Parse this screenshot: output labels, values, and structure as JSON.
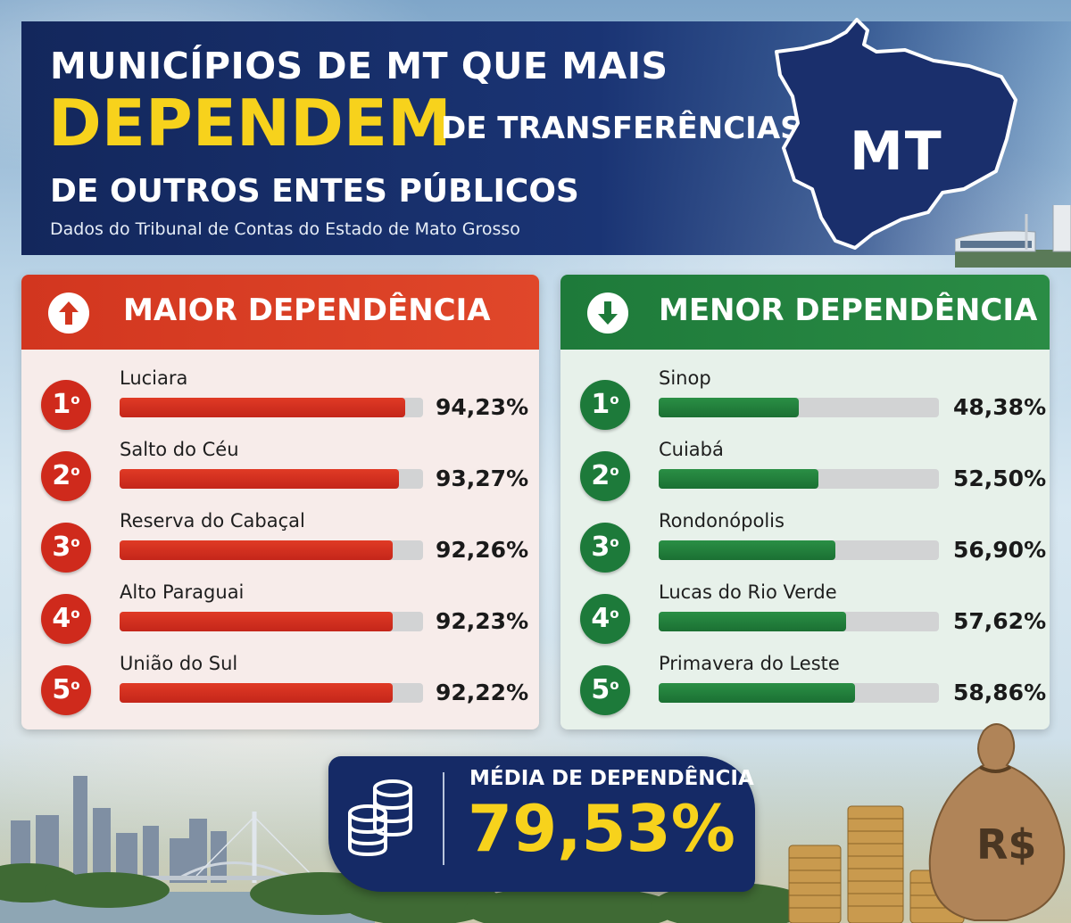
{
  "header": {
    "title_line1": "MUNICÍPIOS DE MT QUE MAIS",
    "title_highlight": "DEPENDEM",
    "title_line2": "DE TRANSFERÊNCIAS",
    "title_line3": "DE OUTROS ENTES PÚBLICOS",
    "subtitle": "Dados do Tribunal de Contas do Estado de Mato Grosso",
    "map_label": "MT"
  },
  "colors": {
    "navy": "#152a66",
    "yellow": "#f7d21c",
    "red": "#d2361f",
    "green": "#1e7a3a"
  },
  "maior": {
    "title": "MAIOR DEPENDÊNCIA",
    "icon": "arrow-up-icon",
    "items": [
      {
        "rank": "1",
        "suffix": "o",
        "city": "Luciara",
        "pct": "94,23%",
        "value": 94.23,
        "fill": 0.94
      },
      {
        "rank": "2",
        "suffix": "o",
        "city": "Salto do Céu",
        "pct": "93,27%",
        "value": 93.27,
        "fill": 0.92
      },
      {
        "rank": "3",
        "suffix": "o",
        "city": "Reserva do Cabaçal",
        "pct": "92,26%",
        "value": 92.26,
        "fill": 0.9
      },
      {
        "rank": "4",
        "suffix": "o",
        "city": "Alto Paraguai",
        "pct": "92,23%",
        "value": 92.23,
        "fill": 0.9
      },
      {
        "rank": "5",
        "suffix": "o",
        "city": "União do Sul",
        "pct": "92,22%",
        "value": 92.22,
        "fill": 0.9
      }
    ]
  },
  "menor": {
    "title": "MENOR DEPENDÊNCIA",
    "icon": "arrow-down-icon",
    "items": [
      {
        "rank": "1",
        "suffix": "o",
        "city": "Sinop",
        "pct": "48,38%",
        "value": 48.38,
        "fill": 0.5
      },
      {
        "rank": "2",
        "suffix": "o",
        "city": "Cuiabá",
        "pct": "52,50%",
        "value": 52.5,
        "fill": 0.57
      },
      {
        "rank": "3",
        "suffix": "o",
        "city": "Rondonópolis",
        "pct": "56,90%",
        "value": 56.9,
        "fill": 0.63
      },
      {
        "rank": "4",
        "suffix": "o",
        "city": "Lucas do Rio Verde",
        "pct": "57,62%",
        "value": 57.62,
        "fill": 0.67
      },
      {
        "rank": "5",
        "suffix": "o",
        "city": "Primavera do Leste",
        "pct": "58,86%",
        "value": 58.86,
        "fill": 0.7
      }
    ]
  },
  "average": {
    "label": "MÉDIA DE DEPENDÊNCIA",
    "value": "79,53%",
    "icon": "coins-icon"
  },
  "decor": {
    "sack_label": "R$"
  }
}
